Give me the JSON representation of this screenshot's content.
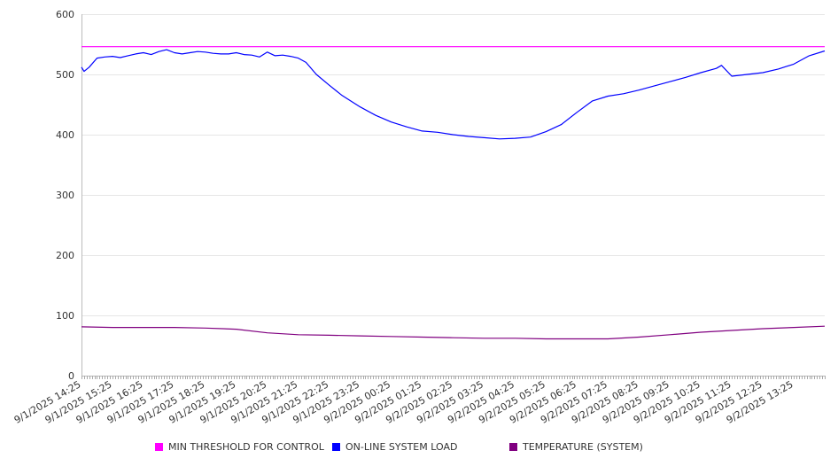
{
  "chart_data": {
    "type": "line",
    "title": "",
    "xlabel": "",
    "ylabel": "",
    "ylim": [
      0,
      600
    ],
    "y_ticks": [
      0,
      100,
      200,
      300,
      400,
      500,
      600
    ],
    "grid": true,
    "legend_position": "bottom",
    "x_tick_labels": [
      "9/1/2025 14:25",
      "9/1/2025 15:25",
      "9/1/2025 16:25",
      "9/1/2025 17:25",
      "9/1/2025 18:25",
      "9/1/2025 19:25",
      "9/1/2025 20:25",
      "9/1/2025 21:25",
      "9/1/2025 22:25",
      "9/1/2025 23:25",
      "9/2/2025 00:25",
      "9/2/2025 01:25",
      "9/2/2025 02:25",
      "9/2/2025 03:25",
      "9/2/2025 04:25",
      "9/2/2025 05:25",
      "9/2/2025 06:25",
      "9/2/2025 07:25",
      "9/2/2025 08:25",
      "9/2/2025 09:25",
      "9/2/2025 10:25",
      "9/2/2025 11:25",
      "9/2/2025 12:25",
      "9/2/2025 13:25"
    ],
    "x_range": [
      "9/1/2025 14:25",
      "9/2/2025 14:25"
    ],
    "series": [
      {
        "name": "MIN THRESHOLD FOR CONTROL",
        "color": "#ff00ff",
        "x": [
          "9/1/2025 14:25",
          "9/2/2025 14:25"
        ],
        "values": [
          546,
          546
        ]
      },
      {
        "name": "ON-LINE SYSTEM LOAD",
        "color": "#0000ff",
        "x": [
          "9/1/2025 14:25",
          "9/1/2025 14:30",
          "9/1/2025 14:40",
          "9/1/2025 14:55",
          "9/1/2025 15:10",
          "9/1/2025 15:25",
          "9/1/2025 15:40",
          "9/1/2025 15:55",
          "9/1/2025 16:10",
          "9/1/2025 16:25",
          "9/1/2025 16:40",
          "9/1/2025 16:55",
          "9/1/2025 17:10",
          "9/1/2025 17:25",
          "9/1/2025 17:40",
          "9/1/2025 17:55",
          "9/1/2025 18:10",
          "9/1/2025 18:25",
          "9/1/2025 18:40",
          "9/1/2025 18:55",
          "9/1/2025 19:10",
          "9/1/2025 19:25",
          "9/1/2025 19:40",
          "9/1/2025 19:55",
          "9/1/2025 20:10",
          "9/1/2025 20:25",
          "9/1/2025 20:40",
          "9/1/2025 20:55",
          "9/1/2025 21:10",
          "9/1/2025 21:25",
          "9/1/2025 21:40",
          "9/1/2025 22:00",
          "9/1/2025 22:25",
          "9/1/2025 22:50",
          "9/1/2025 23:25",
          "9/1/2025 23:55",
          "9/2/2025 00:25",
          "9/2/2025 00:55",
          "9/2/2025 01:25",
          "9/2/2025 01:55",
          "9/2/2025 02:25",
          "9/2/2025 02:55",
          "9/2/2025 03:25",
          "9/2/2025 03:55",
          "9/2/2025 04:25",
          "9/2/2025 04:55",
          "9/2/2025 05:25",
          "9/2/2025 05:55",
          "9/2/2025 06:25",
          "9/2/2025 06:55",
          "9/2/2025 07:25",
          "9/2/2025 07:55",
          "9/2/2025 08:25",
          "9/2/2025 08:55",
          "9/2/2025 09:25",
          "9/2/2025 09:55",
          "9/2/2025 10:25",
          "9/2/2025 10:55",
          "9/2/2025 11:05",
          "9/2/2025 11:25",
          "9/2/2025 11:55",
          "9/2/2025 12:25",
          "9/2/2025 12:55",
          "9/2/2025 13:25",
          "9/2/2025 13:55",
          "9/2/2025 14:25"
        ],
        "values": [
          512,
          505,
          512,
          527,
          529,
          530,
          528,
          531,
          534,
          536,
          533,
          538,
          541,
          536,
          534,
          536,
          538,
          537,
          535,
          534,
          534,
          536,
          533,
          532,
          529,
          537,
          531,
          532,
          530,
          527,
          520,
          500,
          482,
          465,
          446,
          432,
          421,
          413,
          406,
          404,
          400,
          397,
          395,
          393,
          394,
          396,
          405,
          417,
          437,
          456,
          464,
          468,
          474,
          481,
          488,
          495,
          503,
          510,
          515,
          497,
          500,
          503,
          509,
          517,
          531,
          539
        ]
      },
      {
        "name": "TEMPERATURE (SYSTEM)",
        "color": "#800080",
        "x": [
          "9/1/2025 14:25",
          "9/1/2025 15:25",
          "9/1/2025 16:25",
          "9/1/2025 17:25",
          "9/1/2025 18:25",
          "9/1/2025 19:25",
          "9/1/2025 20:25",
          "9/1/2025 21:25",
          "9/1/2025 22:25",
          "9/1/2025 23:25",
          "9/2/2025 00:25",
          "9/2/2025 01:25",
          "9/2/2025 02:25",
          "9/2/2025 03:25",
          "9/2/2025 04:25",
          "9/2/2025 05:25",
          "9/2/2025 06:25",
          "9/2/2025 07:25",
          "9/2/2025 08:25",
          "9/2/2025 09:25",
          "9/2/2025 10:25",
          "9/2/2025 11:25",
          "9/2/2025 12:25",
          "9/2/2025 13:25",
          "9/2/2025 14:25"
        ],
        "values": [
          81,
          80,
          80,
          80,
          79,
          77,
          71,
          68,
          67,
          66,
          65,
          64,
          63,
          62,
          62,
          61,
          61,
          61,
          64,
          68,
          72,
          75,
          78,
          80,
          82
        ]
      }
    ]
  }
}
